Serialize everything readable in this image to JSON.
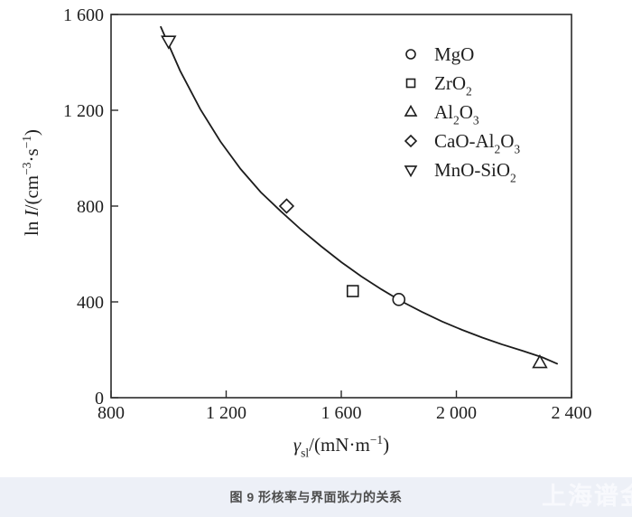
{
  "figure": {
    "caption": "图 9 形核率与界面张力的关系",
    "caption_color": "#4d4d4d",
    "caption_bar_bg": "#edf0f7",
    "watermark_text": "上海谱金",
    "watermark_color": "#fafbfe"
  },
  "chart_data": {
    "type": "scatter",
    "title": "",
    "xlabel_segments": [
      {
        "t": "γ",
        "style": "italic"
      },
      {
        "t": "sl",
        "type": "sub"
      },
      {
        "t": "/(mN·m"
      },
      {
        "t": "−1",
        "type": "sup"
      },
      {
        "t": ")"
      }
    ],
    "ylabel_segments": [
      {
        "t": "ln "
      },
      {
        "t": "I",
        "style": "italic"
      },
      {
        "t": "/(cm"
      },
      {
        "t": "−3",
        "type": "sup"
      },
      {
        "t": "·s"
      },
      {
        "t": "−1",
        "type": "sup"
      },
      {
        "t": ")"
      }
    ],
    "xlim": [
      800,
      2400
    ],
    "ylim": [
      0,
      1600
    ],
    "xticks": [
      {
        "v": 800,
        "label": "800"
      },
      {
        "v": 1200,
        "label": "1 200"
      },
      {
        "v": 1600,
        "label": "1 600"
      },
      {
        "v": 2000,
        "label": "2 000"
      },
      {
        "v": 2400,
        "label": "2 400"
      }
    ],
    "yticks": [
      {
        "v": 0,
        "label": "0"
      },
      {
        "v": 400,
        "label": "400"
      },
      {
        "v": 800,
        "label": "800"
      },
      {
        "v": 1200,
        "label": "1 200"
      },
      {
        "v": 1600,
        "label": "1 600"
      }
    ],
    "grid": false,
    "legend": {
      "position": "upper-right-inside",
      "box": false
    },
    "series": [
      {
        "name": "MgO",
        "marker": "circle",
        "label_segments": [
          {
            "t": "MgO"
          }
        ],
        "points": [
          [
            1800,
            410
          ]
        ]
      },
      {
        "name": "ZrO2",
        "marker": "square",
        "label_segments": [
          {
            "t": "ZrO"
          },
          {
            "t": "2",
            "type": "sub"
          }
        ],
        "points": [
          [
            1640,
            445
          ]
        ]
      },
      {
        "name": "Al2O3",
        "marker": "triangle-up",
        "label_segments": [
          {
            "t": "Al"
          },
          {
            "t": "2",
            "type": "sub"
          },
          {
            "t": "O"
          },
          {
            "t": "3",
            "type": "sub"
          }
        ],
        "points": [
          [
            2290,
            145
          ]
        ]
      },
      {
        "name": "CaO-Al2O3",
        "marker": "diamond",
        "label_segments": [
          {
            "t": "CaO-Al"
          },
          {
            "t": "2",
            "type": "sub"
          },
          {
            "t": "O"
          },
          {
            "t": "3",
            "type": "sub"
          }
        ],
        "points": [
          [
            1410,
            800
          ]
        ]
      },
      {
        "name": "MnO-SiO2",
        "marker": "triangle-down",
        "label_segments": [
          {
            "t": "MnO-SiO"
          },
          {
            "t": "2",
            "type": "sub"
          }
        ],
        "points": [
          [
            1000,
            1490
          ]
        ]
      }
    ],
    "fit_curve": [
      [
        973,
        1548
      ],
      [
        1040,
        1365
      ],
      [
        1110,
        1205
      ],
      [
        1180,
        1070
      ],
      [
        1250,
        955
      ],
      [
        1320,
        858
      ],
      [
        1390,
        778
      ],
      [
        1460,
        702
      ],
      [
        1530,
        632
      ],
      [
        1600,
        566
      ],
      [
        1670,
        506
      ],
      [
        1740,
        452
      ],
      [
        1810,
        402
      ],
      [
        1880,
        358
      ],
      [
        1950,
        318
      ],
      [
        2020,
        283
      ],
      [
        2090,
        251
      ],
      [
        2160,
        222
      ],
      [
        2230,
        196
      ],
      [
        2300,
        168
      ],
      [
        2350,
        142
      ]
    ],
    "colors": {
      "axis": "#2b2b2b",
      "curve": "#1c1c1c",
      "marker_stroke": "#1c1c1c",
      "marker_fill": "#ffffff",
      "text": "#1f1f1f"
    }
  }
}
